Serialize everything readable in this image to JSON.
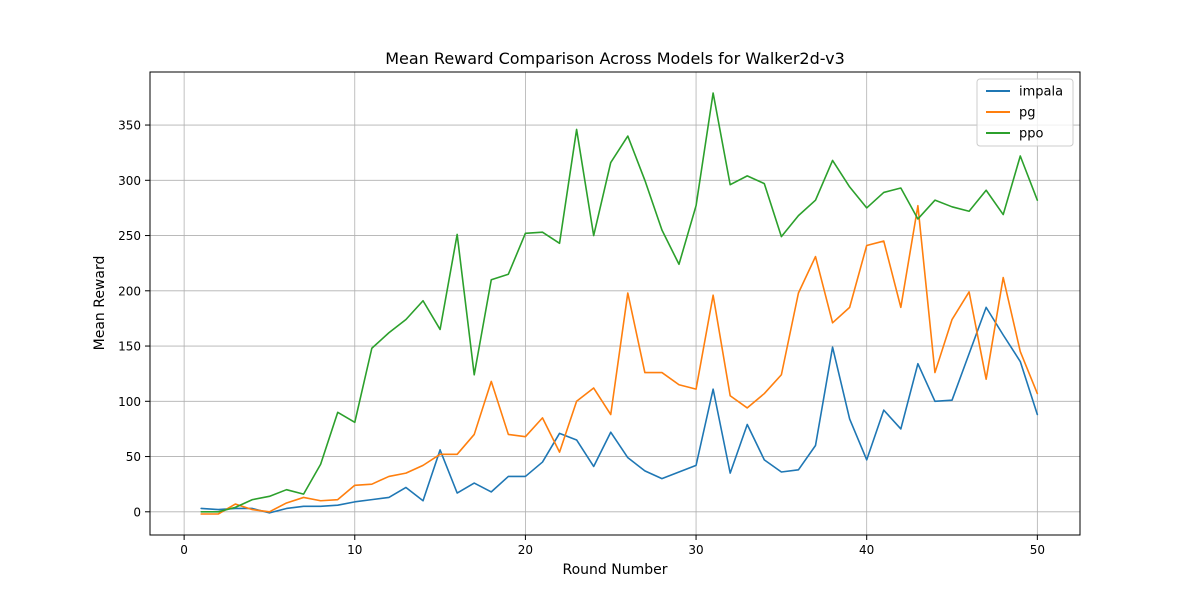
{
  "chart_data": {
    "type": "line",
    "title": "Mean Reward Comparison Across Models for Walker2d-v3",
    "xlabel": "Round Number",
    "ylabel": "Mean Reward",
    "xlim": [
      -2,
      52.5
    ],
    "ylim": [
      -21,
      398
    ],
    "xticks": [
      0,
      10,
      20,
      30,
      40,
      50
    ],
    "yticks": [
      0,
      50,
      100,
      150,
      200,
      250,
      300,
      350
    ],
    "grid": true,
    "legend_position": "top-right",
    "x": [
      1,
      2,
      3,
      4,
      5,
      6,
      7,
      8,
      9,
      10,
      11,
      12,
      13,
      14,
      15,
      16,
      17,
      18,
      19,
      20,
      21,
      22,
      23,
      24,
      25,
      26,
      27,
      28,
      29,
      30,
      31,
      32,
      33,
      34,
      35,
      36,
      37,
      38,
      39,
      40,
      41,
      42,
      43,
      44,
      45,
      46,
      47,
      48,
      49,
      50
    ],
    "series": [
      {
        "name": "impala",
        "color": "#1f77b4",
        "values": [
          3,
          2,
          3,
          3,
          -1,
          3,
          5,
          5,
          6,
          9,
          11,
          13,
          22,
          10,
          56,
          17,
          26,
          18,
          32,
          32,
          45,
          71,
          65,
          41,
          72,
          49,
          37,
          30,
          36,
          42,
          111,
          35,
          79,
          47,
          36,
          38,
          60,
          149,
          84,
          47,
          92,
          75,
          134,
          100,
          101,
          143,
          185,
          160,
          136,
          88
        ]
      },
      {
        "name": "pg",
        "color": "#ff7f0e",
        "values": [
          -2,
          -2,
          7,
          2,
          0,
          8,
          13,
          10,
          11,
          24,
          25,
          32,
          35,
          42,
          52,
          52,
          70,
          118,
          70,
          68,
          85,
          54,
          100,
          112,
          88,
          198,
          126,
          126,
          115,
          111,
          196,
          105,
          94,
          107,
          124,
          198,
          231,
          171,
          185,
          241,
          245,
          185,
          277,
          126,
          174,
          199,
          120,
          212,
          145,
          107
        ]
      },
      {
        "name": "ppo",
        "color": "#2ca02c",
        "values": [
          0,
          0,
          4,
          11,
          14,
          20,
          16,
          43,
          90,
          81,
          148,
          162,
          174,
          191,
          165,
          251,
          124,
          210,
          215,
          252,
          253,
          243,
          346,
          250,
          316,
          340,
          300,
          255,
          224,
          277,
          379,
          296,
          304,
          297,
          249,
          268,
          282,
          318,
          294,
          275,
          289,
          293,
          265,
          282,
          276,
          272,
          291,
          269,
          322,
          282
        ]
      }
    ]
  }
}
